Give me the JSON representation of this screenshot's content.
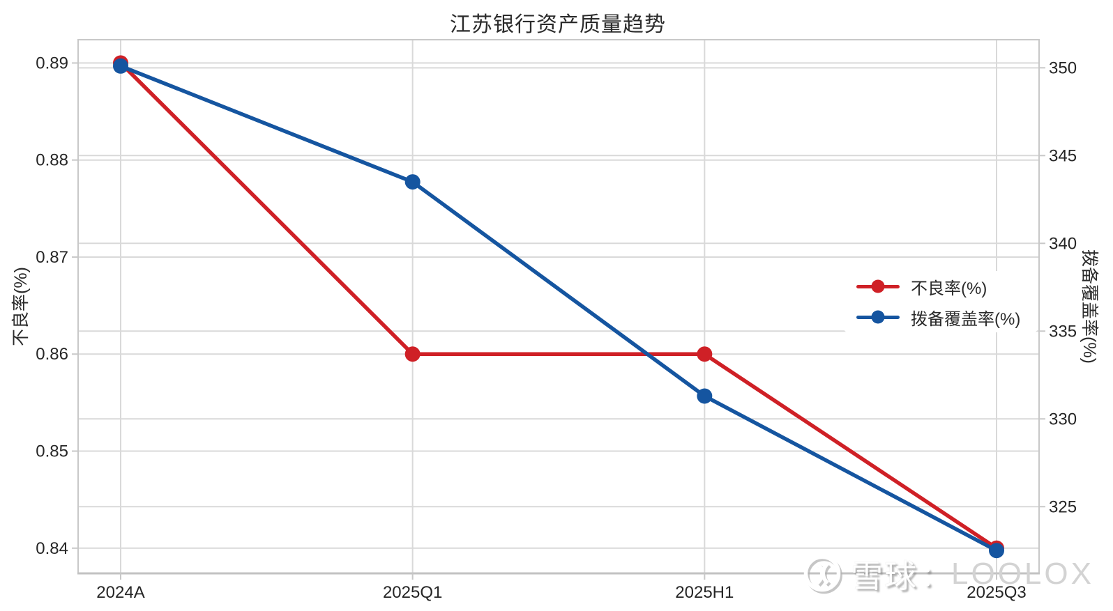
{
  "title": "江苏银行资产质量趋势",
  "colors": {
    "red_series": "#cf2026",
    "blue_series": "#1555a0",
    "grid": "#d9d9d9",
    "plot_border": "#c8c8c8",
    "bottom_axis": "#c2c2c2",
    "tick_text": "#262626"
  },
  "chart_data": {
    "type": "line",
    "title": "江苏银行资产质量趋势",
    "categories": [
      "2024A",
      "2025Q1",
      "2025H1",
      "2025Q3"
    ],
    "series": [
      {
        "name": "不良率(%)",
        "axis": "left",
        "color": "#cf2026",
        "values": [
          0.89,
          0.86,
          0.86,
          0.84
        ]
      },
      {
        "name": "拨备覆盖率(%)",
        "axis": "right",
        "color": "#1555a0",
        "values": [
          350.1,
          343.5,
          331.3,
          322.5
        ]
      }
    ],
    "left_axis": {
      "label": "不良率(%)",
      "ticks": [
        0.84,
        0.85,
        0.86,
        0.87,
        0.88,
        0.89
      ],
      "range": [
        0.8374,
        0.8924
      ],
      "decimals": 2
    },
    "right_axis": {
      "label": "拨备覆盖率(%)",
      "ticks": [
        325,
        330,
        335,
        340,
        345,
        350
      ],
      "range": [
        321.2,
        351.6
      ],
      "decimals": 0
    },
    "grid": true,
    "legend_position": "center-right"
  },
  "legend": {
    "items": [
      {
        "label": "不良率(%)",
        "color": "#cf2026"
      },
      {
        "label": "拨备覆盖率(%)",
        "color": "#1555a0"
      }
    ]
  },
  "watermark": {
    "logo": "xueqiu-snowball-logo",
    "site": "雪球",
    "separator": "：",
    "user": "LOOLOX"
  }
}
